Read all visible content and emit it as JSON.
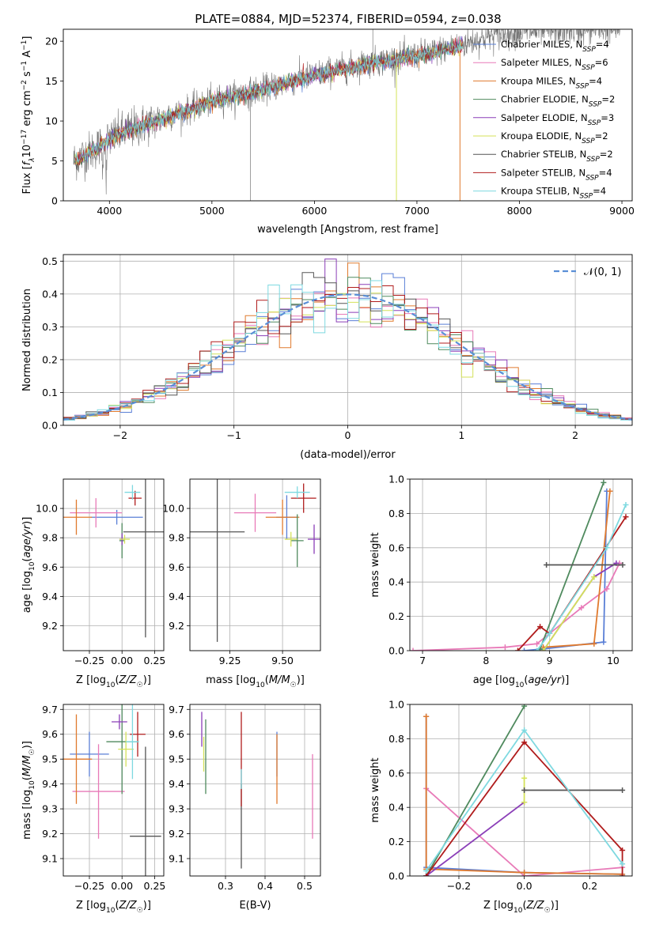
{
  "title": "PLATE=0884, MJD=52374, FIBERID=0594, z=0.038",
  "colors": {
    "Chabrier MILES": "#5a7fd6",
    "Salpeter MILES": "#e87ab8",
    "Kroupa MILES": "#e07a2e",
    "Chabrier ELODIE": "#4f8a5e",
    "Salpeter ELODIE": "#8b3fb8",
    "Kroupa ELODIE": "#d4e25a",
    "Chabrier STELIB": "#555555",
    "Salpeter STELIB": "#b01c1c",
    "Kroupa STELIB": "#7ed9e0",
    "normal": "#5a8fd6",
    "grid": "#b0b0b0"
  },
  "legend": [
    {
      "name": "Chabrier MILES",
      "nssp": "4"
    },
    {
      "name": "Salpeter MILES",
      "nssp": "6"
    },
    {
      "name": "Kroupa MILES",
      "nssp": "4"
    },
    {
      "name": "Chabrier ELODIE",
      "nssp": "2"
    },
    {
      "name": "Salpeter ELODIE",
      "nssp": "3"
    },
    {
      "name": "Kroupa ELODIE",
      "nssp": "2"
    },
    {
      "name": "Chabrier STELIB",
      "nssp": "2"
    },
    {
      "name": "Salpeter STELIB",
      "nssp": "4"
    },
    {
      "name": "Kroupa STELIB",
      "nssp": "4"
    }
  ],
  "chart_data": [
    {
      "id": "spectrum",
      "type": "line",
      "xlabel": "wavelength [Angstrom, rest frame]",
      "ylabel": "Flux [f_λ 10^-17 erg cm^-2 s^-1 A^-1]",
      "xlim": [
        3550,
        9100
      ],
      "ylim": [
        0,
        21.5
      ],
      "xticks": [
        4000,
        5000,
        6000,
        7000,
        8000,
        9000
      ],
      "yticks": [
        0,
        5,
        10,
        15,
        20
      ],
      "continuum": [
        [
          3650,
          5.0
        ],
        [
          3900,
          6.8
        ],
        [
          4000,
          7.8
        ],
        [
          4200,
          9.0
        ],
        [
          4500,
          10.2
        ],
        [
          5000,
          12.5
        ],
        [
          5500,
          14.0
        ],
        [
          6000,
          15.8
        ],
        [
          6500,
          17.2
        ],
        [
          7000,
          18.2
        ],
        [
          7400,
          19.4
        ],
        [
          7700,
          20.6
        ],
        [
          8000,
          21.2
        ],
        [
          9000,
          21.6
        ]
      ],
      "data_end_wavelength": 7450
    },
    {
      "id": "residuals",
      "type": "histogram",
      "xlabel": "(data-model)/error",
      "ylabel": "Normed distribution",
      "xlim": [
        -2.5,
        2.5
      ],
      "ylim": [
        0,
        0.52
      ],
      "xticks": [
        -2,
        -1,
        0,
        1,
        2
      ],
      "yticks": [
        0,
        0.1,
        0.2,
        0.3,
        0.4,
        0.5
      ],
      "legend": "N(0,1)",
      "legend_position": "top-right",
      "bin_width": 0.1
    },
    {
      "id": "age-Z",
      "type": "errorbar",
      "xlabel": "Z [log10(Z/Z☉)]",
      "ylabel": "age [log10(age/yr)]",
      "xlim": [
        -0.45,
        0.32
      ],
      "ylim": [
        9.03,
        10.2
      ],
      "xticks": [
        -0.25,
        0,
        0.25
      ],
      "yticks": [
        9.2,
        9.4,
        9.6,
        9.8,
        10.0
      ],
      "points": [
        {
          "series": "Chabrier MILES",
          "x": -0.04,
          "y": 9.94,
          "xerr": 0.2,
          "yerr": 0.05
        },
        {
          "series": "Salpeter MILES",
          "x": -0.2,
          "y": 9.97,
          "xerr": 0.2,
          "yerr": 0.1
        },
        {
          "series": "Kroupa MILES",
          "x": -0.35,
          "y": 9.94,
          "xerr": 0.12,
          "yerr": 0.12
        },
        {
          "series": "Chabrier ELODIE",
          "x": 0.0,
          "y": 9.78,
          "xerr": 0.02,
          "yerr": 0.12
        },
        {
          "series": "Salpeter ELODIE",
          "x": 0.0,
          "y": 9.79,
          "xerr": 0.02,
          "yerr": 0.04
        },
        {
          "series": "Kroupa ELODIE",
          "x": 0.02,
          "y": 9.79,
          "xerr": 0.04,
          "yerr": 0.03
        },
        {
          "series": "Chabrier STELIB",
          "x": 0.18,
          "y": 9.84,
          "xerr": 0.17,
          "yerr": 0.72
        },
        {
          "series": "Salpeter STELIB",
          "x": 0.1,
          "y": 10.07,
          "xerr": 0.05,
          "yerr": 0.05
        },
        {
          "series": "Kroupa STELIB",
          "x": 0.08,
          "y": 10.11,
          "xerr": 0.06,
          "yerr": 0.05
        }
      ]
    },
    {
      "id": "age-mass",
      "type": "errorbar",
      "xlabel": "mass [log10(M/M☉)]",
      "ylabel": "",
      "xlim": [
        9.06,
        9.68
      ],
      "ylim": [
        9.03,
        10.2
      ],
      "xticks": [
        9.25,
        9.5
      ],
      "yticks": [
        9.2,
        9.4,
        9.6,
        9.8,
        10.0
      ],
      "points": [
        {
          "series": "Chabrier MILES",
          "x": 9.52,
          "y": 9.94,
          "xerr": 0.05,
          "yerr": 0.15
        },
        {
          "series": "Salpeter MILES",
          "x": 9.37,
          "y": 9.97,
          "xerr": 0.1,
          "yerr": 0.13
        },
        {
          "series": "Kroupa MILES",
          "x": 9.5,
          "y": 9.94,
          "xerr": 0.08,
          "yerr": 0.12
        },
        {
          "series": "Chabrier ELODIE",
          "x": 9.57,
          "y": 9.78,
          "xerr": 0.03,
          "yerr": 0.18
        },
        {
          "series": "Salpeter ELODIE",
          "x": 9.65,
          "y": 9.79,
          "xerr": 0.03,
          "yerr": 0.1
        },
        {
          "series": "Kroupa ELODIE",
          "x": 9.54,
          "y": 9.79,
          "xerr": 0.03,
          "yerr": 0.05
        },
        {
          "series": "Chabrier STELIB",
          "x": 9.19,
          "y": 9.84,
          "xerr": 0.13,
          "yerr": 0.75
        },
        {
          "series": "Salpeter STELIB",
          "x": 9.6,
          "y": 10.07,
          "xerr": 0.06,
          "yerr": 0.1
        },
        {
          "series": "Kroupa STELIB",
          "x": 9.57,
          "y": 10.11,
          "xerr": 0.06,
          "yerr": 0.04
        }
      ]
    },
    {
      "id": "mw-age",
      "type": "line",
      "xlabel": "age [log10(age/yr)]",
      "ylabel": "mass weight",
      "xlim": [
        6.8,
        10.3
      ],
      "ylim": [
        0,
        1.0
      ],
      "xticks": [
        7,
        8,
        9,
        10
      ],
      "yticks": [
        0,
        0.2,
        0.4,
        0.6,
        0.8,
        1.0
      ],
      "series": [
        {
          "name": "Chabrier MILES",
          "x": [
            8.6,
            8.9,
            9.85,
            9.9
          ],
          "y": [
            0.0,
            0.01,
            0.05,
            0.93
          ]
        },
        {
          "name": "Salpeter MILES",
          "x": [
            6.85,
            8.3,
            8.8,
            9.5,
            9.9,
            10.1
          ],
          "y": [
            0.0,
            0.02,
            0.04,
            0.25,
            0.36,
            0.51
          ]
        },
        {
          "name": "Kroupa MILES",
          "x": [
            8.9,
            9.7,
            9.95
          ],
          "y": [
            0.02,
            0.04,
            0.93
          ]
        },
        {
          "name": "Chabrier ELODIE",
          "x": [
            8.85,
            9.85
          ],
          "y": [
            0.01,
            0.98
          ]
        },
        {
          "name": "Salpeter ELODIE",
          "x": [
            8.9,
            9.7,
            10.05
          ],
          "y": [
            0.0,
            0.43,
            0.51
          ]
        },
        {
          "name": "Kroupa ELODIE",
          "x": [
            8.9,
            9.7
          ],
          "y": [
            0.0,
            0.43
          ]
        },
        {
          "name": "Chabrier STELIB",
          "x": [
            8.95,
            10.15
          ],
          "y": [
            0.5,
            0.5
          ]
        },
        {
          "name": "Salpeter STELIB",
          "x": [
            8.5,
            8.85,
            9.0,
            10.2
          ],
          "y": [
            0.0,
            0.14,
            0.1,
            0.78
          ]
        },
        {
          "name": "Kroupa STELIB",
          "x": [
            8.8,
            9.0,
            9.9,
            10.2
          ],
          "y": [
            0.0,
            0.1,
            0.6,
            0.85
          ]
        }
      ]
    },
    {
      "id": "mass-Z",
      "type": "errorbar",
      "xlabel": "Z [log10(Z/Z☉)]",
      "ylabel": "mass [log10(M/M☉)]",
      "xlim": [
        -0.45,
        0.32
      ],
      "ylim": [
        9.03,
        9.72
      ],
      "xticks": [
        -0.25,
        0,
        0.25
      ],
      "yticks": [
        9.1,
        9.2,
        9.3,
        9.4,
        9.5,
        9.6,
        9.7
      ],
      "points": [
        {
          "series": "Chabrier MILES",
          "x": -0.25,
          "y": 9.52,
          "xerr": 0.15,
          "yerr": 0.09
        },
        {
          "series": "Salpeter MILES",
          "x": -0.18,
          "y": 9.37,
          "xerr": 0.2,
          "yerr": 0.19
        },
        {
          "series": "Kroupa MILES",
          "x": -0.35,
          "y": 9.5,
          "xerr": 0.12,
          "yerr": 0.18
        },
        {
          "series": "Chabrier ELODIE",
          "x": 0.0,
          "y": 9.57,
          "xerr": 0.12,
          "yerr": 0.21
        },
        {
          "series": "Salpeter ELODIE",
          "x": -0.02,
          "y": 9.65,
          "xerr": 0.06,
          "yerr": 0.03
        },
        {
          "series": "Kroupa ELODIE",
          "x": 0.03,
          "y": 9.54,
          "xerr": 0.06,
          "yerr": 0.07
        },
        {
          "series": "Chabrier STELIB",
          "x": 0.18,
          "y": 9.19,
          "xerr": 0.12,
          "yerr": 0.36
        },
        {
          "series": "Salpeter STELIB",
          "x": 0.12,
          "y": 9.6,
          "xerr": 0.06,
          "yerr": 0.09
        },
        {
          "series": "Kroupa STELIB",
          "x": 0.08,
          "y": 9.57,
          "xerr": 0.05,
          "yerr": 0.15
        }
      ]
    },
    {
      "id": "mass-EBV",
      "type": "errorbar",
      "xlabel": "E(B-V)",
      "ylabel": "",
      "xlim": [
        0.21,
        0.54
      ],
      "ylim": [
        9.03,
        9.72
      ],
      "xticks": [
        0.3,
        0.4,
        0.5
      ],
      "yticks": [
        9.1,
        9.2,
        9.3,
        9.4,
        9.5,
        9.6,
        9.7
      ],
      "points": [
        {
          "series": "Chabrier MILES",
          "x": 0.43,
          "y": 9.52,
          "xerr": 0.0,
          "yerr": 0.09
        },
        {
          "series": "Salpeter MILES",
          "x": 0.52,
          "y": 9.35,
          "xerr": 0.0,
          "yerr": 0.17
        },
        {
          "series": "Kroupa MILES",
          "x": 0.43,
          "y": 9.46,
          "xerr": 0.0,
          "yerr": 0.14
        },
        {
          "series": "Chabrier ELODIE",
          "x": 0.25,
          "y": 9.51,
          "xerr": 0.0,
          "yerr": 0.15
        },
        {
          "series": "Salpeter ELODIE",
          "x": 0.24,
          "y": 9.62,
          "xerr": 0.0,
          "yerr": 0.07
        },
        {
          "series": "Kroupa ELODIE",
          "x": 0.245,
          "y": 9.52,
          "xerr": 0.0,
          "yerr": 0.07
        },
        {
          "series": "Chabrier STELIB",
          "x": 0.34,
          "y": 9.23,
          "xerr": 0.0,
          "yerr": 0.17
        },
        {
          "series": "Salpeter STELIB",
          "x": 0.34,
          "y": 9.5,
          "xerr": 0.0,
          "yerr": 0.19
        },
        {
          "series": "Kroupa STELIB",
          "x": 0.34,
          "y": 9.42,
          "xerr": 0.0,
          "yerr": 0.04
        }
      ]
    },
    {
      "id": "mw-Z",
      "type": "line",
      "xlabel": "Z [log10(Z/Z☉)]",
      "ylabel": "mass weight",
      "xlim": [
        -0.35,
        0.33
      ],
      "ylim": [
        0,
        1.0
      ],
      "xticks": [
        -0.2,
        0,
        0.2
      ],
      "yticks": [
        0,
        0.2,
        0.4,
        0.6,
        0.8,
        1.0
      ],
      "series": [
        {
          "name": "Chabrier MILES",
          "x": [
            -0.3,
            -0.3,
            0.0,
            0.3
          ],
          "y": [
            0.93,
            0.05,
            0.02,
            0.01
          ]
        },
        {
          "name": "Salpeter MILES",
          "x": [
            -0.3,
            0.0,
            0.3
          ],
          "y": [
            0.51,
            0.0,
            0.05
          ]
        },
        {
          "name": "Kroupa MILES",
          "x": [
            -0.3,
            -0.3,
            0.0,
            0.3
          ],
          "y": [
            0.93,
            0.04,
            0.02,
            0.01
          ]
        },
        {
          "name": "Chabrier ELODIE",
          "x": [
            -0.3,
            0.0
          ],
          "y": [
            0.0,
            0.99
          ]
        },
        {
          "name": "Salpeter ELODIE",
          "x": [
            -0.3,
            0.0
          ],
          "y": [
            0.0,
            0.43
          ]
        },
        {
          "name": "Kroupa ELODIE",
          "x": [
            0.0,
            0.0
          ],
          "y": [
            0.43,
            0.57
          ]
        },
        {
          "name": "Chabrier STELIB",
          "x": [
            0.0,
            0.3
          ],
          "y": [
            0.5,
            0.5
          ]
        },
        {
          "name": "Salpeter STELIB",
          "x": [
            -0.3,
            0.0,
            0.3,
            0.3
          ],
          "y": [
            0.0,
            0.78,
            0.15,
            0.0
          ]
        },
        {
          "name": "Kroupa STELIB",
          "x": [
            -0.3,
            0.0,
            0.3
          ],
          "y": [
            0.03,
            0.85,
            0.07
          ]
        }
      ]
    }
  ]
}
